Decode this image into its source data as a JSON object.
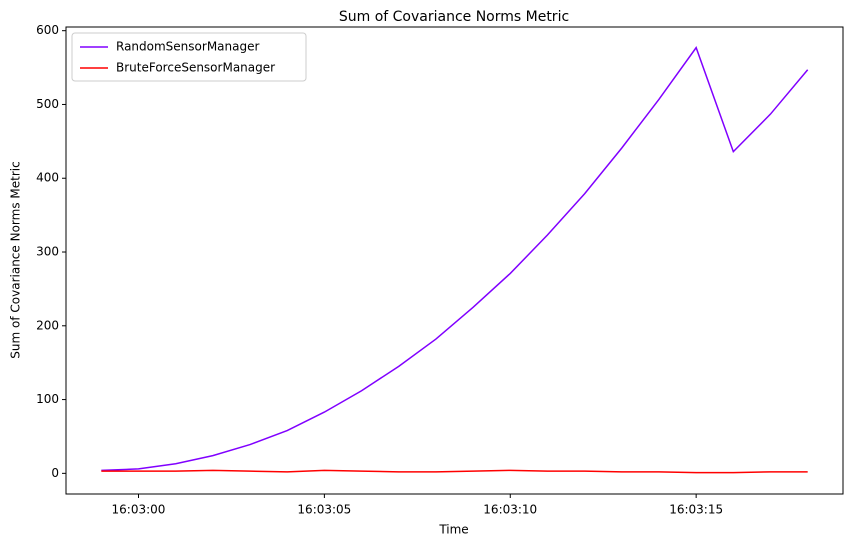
{
  "chart_data": {
    "type": "line",
    "title": "Sum of Covariance Norms Metric",
    "x_label": "Time",
    "y_label": "Sum of Covariance Norms Metric",
    "x": [
      "16:02:59",
      "16:03:00",
      "16:03:01",
      "16:03:02",
      "16:03:03",
      "16:03:04",
      "16:03:05",
      "16:03:06",
      "16:03:07",
      "16:03:08",
      "16:03:09",
      "16:03:10",
      "16:03:11",
      "16:03:12",
      "16:03:13",
      "16:03:14",
      "16:03:15",
      "16:03:16",
      "16:03:17",
      "16:03:18"
    ],
    "series": [
      {
        "name": "RandomSensorManager",
        "color": "#8000ff",
        "values": [
          4,
          6,
          13,
          24,
          39,
          58,
          83,
          112,
          145,
          182,
          225,
          271,
          323,
          379,
          441,
          507,
          577,
          436,
          487,
          547
        ]
      },
      {
        "name": "BruteForceSensorManager",
        "color": "#ff0000",
        "values": [
          3,
          3,
          3,
          4,
          3,
          2,
          4,
          3,
          2,
          2,
          3,
          4,
          3,
          3,
          2,
          2,
          1,
          1,
          2,
          2
        ]
      }
    ],
    "xlim": [
      "16:02:58.05",
      "16:03:18.95"
    ],
    "xticks": [
      "16:03:00",
      "16:03:05",
      "16:03:10",
      "16:03:15"
    ],
    "ylim": [
      -28,
      605
    ],
    "yticks": [
      0,
      100,
      200,
      300,
      400,
      500,
      600
    ],
    "legend": "upper left"
  }
}
